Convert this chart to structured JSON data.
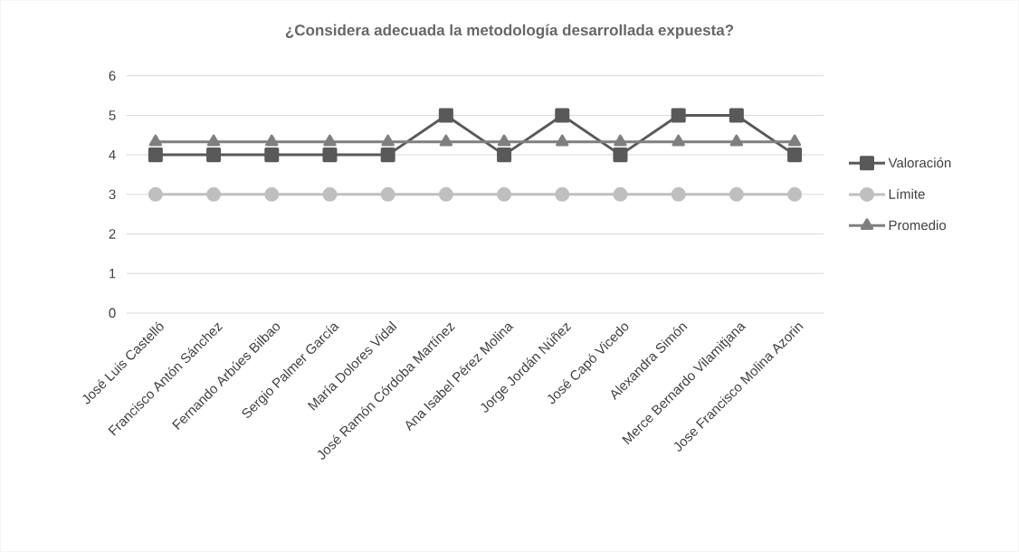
{
  "chart_data": {
    "type": "line",
    "title": "¿Considera adecuada la metodología desarrollada expuesta?",
    "categories": [
      "José Luis Castelló",
      "Francisco Antón Sánchez",
      "Fernando Arbúes Bilbao",
      "Sergio Palmer García",
      "María Dolores Vidal",
      "José Ramón Córdoba Martínez",
      "Ana Isabel Pérez Molina",
      "Jorge Jordán Núñez",
      "José Capó Vicedo",
      "Alexandra Simón",
      "Merce Bernardo Vilamitjana",
      "Jose Francisco Molina Azorin"
    ],
    "series": [
      {
        "name": "Valoración",
        "color": "#595959",
        "marker": "square",
        "values": [
          4,
          4,
          4,
          4,
          4,
          5,
          4,
          5,
          4,
          5,
          5,
          4
        ]
      },
      {
        "name": "Límite",
        "color": "#bfbfbf",
        "marker": "circle",
        "values": [
          3,
          3,
          3,
          3,
          3,
          3,
          3,
          3,
          3,
          3,
          3,
          3
        ]
      },
      {
        "name": "Promedio",
        "color": "#7f7f7f",
        "marker": "triangle",
        "values": [
          4.33,
          4.33,
          4.33,
          4.33,
          4.33,
          4.33,
          4.33,
          4.33,
          4.33,
          4.33,
          4.33,
          4.33
        ]
      }
    ],
    "ylim": [
      0,
      6
    ],
    "yticks": [
      0,
      1,
      2,
      3,
      4,
      5,
      6
    ],
    "grid": "y",
    "legend": "right",
    "line_style": "solid"
  }
}
